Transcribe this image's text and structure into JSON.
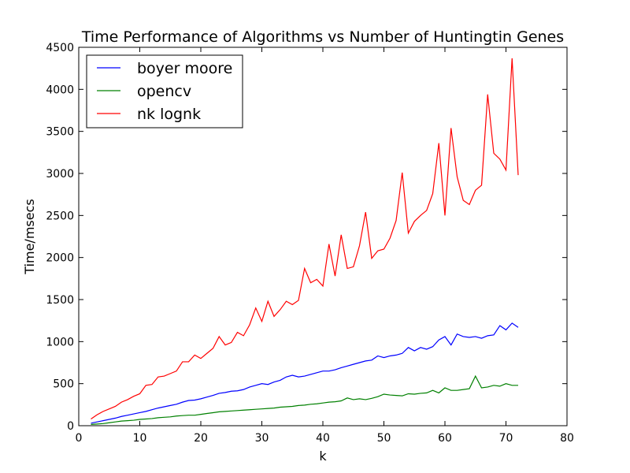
{
  "chart_data": {
    "type": "line",
    "title": "Time Performance of Algorithms vs Number of Huntingtin Genes",
    "xlabel": "k",
    "ylabel": "Time/msecs",
    "xlim": [
      0,
      80
    ],
    "ylim": [
      0,
      4500
    ],
    "xticks": [
      0,
      10,
      20,
      30,
      40,
      50,
      60,
      70,
      80
    ],
    "yticks": [
      0,
      500,
      1000,
      1500,
      2000,
      2500,
      3000,
      3500,
      4000,
      4500
    ],
    "grid": false,
    "legend_position": "upper-left",
    "x": [
      2,
      3,
      4,
      5,
      6,
      7,
      8,
      9,
      10,
      11,
      12,
      13,
      14,
      15,
      16,
      17,
      18,
      19,
      20,
      21,
      22,
      23,
      24,
      25,
      26,
      27,
      28,
      29,
      30,
      31,
      32,
      33,
      34,
      35,
      36,
      37,
      38,
      39,
      40,
      41,
      42,
      43,
      44,
      45,
      46,
      47,
      48,
      49,
      50,
      51,
      52,
      53,
      54,
      55,
      56,
      57,
      58,
      59,
      60,
      61,
      62,
      63,
      64,
      65,
      66,
      67,
      68,
      69,
      70,
      71,
      72
    ],
    "series": [
      {
        "name": "boyer moore",
        "color": "#0000ff",
        "values": [
          30,
          45,
          60,
          75,
          90,
          110,
          125,
          140,
          155,
          170,
          190,
          210,
          225,
          240,
          255,
          280,
          300,
          305,
          320,
          340,
          360,
          385,
          395,
          410,
          415,
          430,
          460,
          480,
          500,
          490,
          520,
          540,
          580,
          600,
          580,
          590,
          610,
          630,
          650,
          650,
          665,
          690,
          710,
          730,
          750,
          770,
          780,
          830,
          810,
          830,
          840,
          860,
          930,
          890,
          930,
          910,
          940,
          1020,
          1060,
          960,
          1090,
          1060,
          1050,
          1060,
          1040,
          1070,
          1080,
          1190,
          1140,
          1220,
          1170
        ]
      },
      {
        "name": "opencv",
        "color": "#008000",
        "values": [
          15,
          20,
          25,
          35,
          45,
          55,
          60,
          65,
          75,
          80,
          85,
          95,
          100,
          105,
          115,
          120,
          125,
          125,
          135,
          145,
          155,
          165,
          170,
          175,
          180,
          185,
          190,
          195,
          200,
          205,
          210,
          220,
          225,
          230,
          240,
          245,
          255,
          260,
          270,
          280,
          285,
          295,
          330,
          310,
          320,
          310,
          325,
          345,
          375,
          365,
          360,
          355,
          380,
          375,
          385,
          390,
          420,
          390,
          450,
          420,
          420,
          430,
          440,
          590,
          450,
          460,
          480,
          470,
          500,
          480,
          480
        ]
      },
      {
        "name": "nk lognk",
        "color": "#ff0000",
        "values": [
          80,
          130,
          170,
          200,
          230,
          280,
          310,
          350,
          380,
          480,
          490,
          580,
          590,
          620,
          650,
          760,
          760,
          840,
          800,
          860,
          920,
          1060,
          960,
          990,
          1110,
          1070,
          1200,
          1400,
          1240,
          1480,
          1300,
          1380,
          1480,
          1440,
          1490,
          1870,
          1700,
          1740,
          1660,
          2160,
          1780,
          2270,
          1870,
          1890,
          2140,
          2540,
          1990,
          2080,
          2100,
          2230,
          2440,
          3010,
          2290,
          2430,
          2500,
          2560,
          2760,
          3360,
          2500,
          3540,
          2960,
          2680,
          2630,
          2800,
          2860,
          3940,
          3240,
          3170,
          3040,
          4370,
          2980
        ]
      }
    ]
  }
}
